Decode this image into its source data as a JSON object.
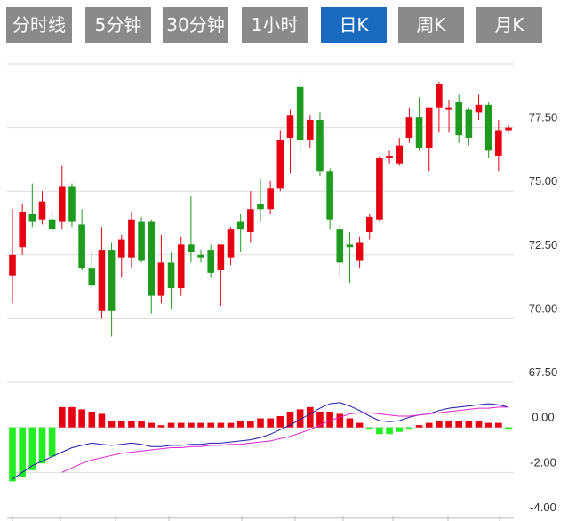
{
  "tabs": [
    "分时线",
    "5分钟",
    "30分钟",
    "1小时",
    "日K",
    "周K",
    "月K"
  ],
  "active_tab": 4,
  "chart_data": [
    {
      "type": "candlestick",
      "up_color": "#e60012",
      "down_color": "#1e9b1e",
      "grid": true,
      "ylim": [
        67.5,
        80
      ],
      "yticks": [
        {
          "value": 67.5,
          "label": "67.50"
        },
        {
          "value": 70,
          "label": "70.00"
        },
        {
          "value": 72.5,
          "label": "72.50"
        },
        {
          "value": 75,
          "label": "75.00"
        },
        {
          "value": 77.5,
          "label": "77.50"
        }
      ],
      "open": [
        71.7,
        72.8,
        74.1,
        73.9,
        73.9,
        73.8,
        75.2,
        73.7,
        72.0,
        70.3,
        72.7,
        72.4,
        72.4,
        73.8,
        73.8,
        70.9,
        72.2,
        71.2,
        72.9,
        72.5,
        72.7,
        71.9,
        72.4,
        73.8,
        73.4,
        74.5,
        74.3,
        75.1,
        77.1,
        79.1,
        77.0,
        77.8,
        75.8,
        73.5,
        72.9,
        72.3,
        73.4,
        73.9,
        76.3,
        76.1,
        77.1,
        77.9,
        76.7,
        78.3,
        78.2,
        78.5,
        78.2,
        78.1,
        78.4,
        76.4,
        77.4
      ],
      "high": [
        74.3,
        74.5,
        75.3,
        75.0,
        74.2,
        76.0,
        75.3,
        74.3,
        72.7,
        73.6,
        73.0,
        73.3,
        74.2,
        74.0,
        73.9,
        73.3,
        72.6,
        73.2,
        74.8,
        72.7,
        72.9,
        72.9,
        73.6,
        74.1,
        75.0,
        75.5,
        75.4,
        77.4,
        78.2,
        79.4,
        78.0,
        78.1,
        75.9,
        73.7,
        73.4,
        73.2,
        74.1,
        76.4,
        76.6,
        77.1,
        78.3,
        78.7,
        78.3,
        79.3,
        78.6,
        78.8,
        78.3,
        78.8,
        78.5,
        77.8,
        77.6
      ],
      "low": [
        70.6,
        72.5,
        73.6,
        73.7,
        73.4,
        73.5,
        73.6,
        71.9,
        71.2,
        70.0,
        69.3,
        71.6,
        72.0,
        72.2,
        70.2,
        70.6,
        70.4,
        70.9,
        72.2,
        72.2,
        71.6,
        70.5,
        72.1,
        72.6,
        73.0,
        73.8,
        74.1,
        75.0,
        75.7,
        76.5,
        76.7,
        75.6,
        73.5,
        71.6,
        71.4,
        72.0,
        73.1,
        73.8,
        76.1,
        76.0,
        76.9,
        76.6,
        75.8,
        77.3,
        77.3,
        76.9,
        76.8,
        77.8,
        76.3,
        75.8,
        77.3
      ],
      "close": [
        72.5,
        74.2,
        73.8,
        74.6,
        73.5,
        75.2,
        73.8,
        72.0,
        71.3,
        72.7,
        70.3,
        73.1,
        73.9,
        72.3,
        70.9,
        72.2,
        71.2,
        72.9,
        72.6,
        72.4,
        71.8,
        72.9,
        73.5,
        73.5,
        74.3,
        74.3,
        75.1,
        77.0,
        78.0,
        77.0,
        77.8,
        75.8,
        73.9,
        72.2,
        72.8,
        73.0,
        74.0,
        76.3,
        76.4,
        76.8,
        77.9,
        76.7,
        78.3,
        79.2,
        78.3,
        77.2,
        77.1,
        78.4,
        76.6,
        77.4,
        77.5
      ]
    },
    {
      "type": "macd",
      "grid": true,
      "ylim": [
        -4,
        2
      ],
      "yticks": [
        {
          "value": -4,
          "label": "-4.00"
        },
        {
          "value": -2,
          "label": "-2.00"
        },
        {
          "value": 0,
          "label": "0.00"
        }
      ],
      "series": [
        {
          "kind": "bar",
          "color": "#e60012",
          "down_color": "#22ee22",
          "values": [
            -2.4,
            -2.2,
            -1.9,
            -1.6,
            -1.3,
            0.9,
            0.9,
            0.8,
            0.7,
            0.6,
            0.3,
            0.3,
            0.3,
            0.3,
            0.2,
            0.1,
            0.2,
            0.2,
            0.2,
            0.2,
            0.2,
            0.2,
            0.2,
            0.3,
            0.3,
            0.4,
            0.4,
            0.5,
            0.7,
            0.8,
            0.9,
            0.7,
            0.7,
            0.6,
            0.4,
            0.2,
            -0.1,
            -0.3,
            -0.3,
            -0.2,
            -0.1,
            0.1,
            0.2,
            0.3,
            0.3,
            0.3,
            0.3,
            0.3,
            0.2,
            0.2,
            -0.1
          ]
        },
        {
          "kind": "line",
          "color": "#1a1aa8",
          "values": [
            -2.3,
            -2.0,
            -1.7,
            -1.5,
            -1.3,
            -1.1,
            -0.9,
            -0.8,
            -0.7,
            -0.75,
            -0.8,
            -0.75,
            -0.7,
            -0.75,
            -0.85,
            -0.85,
            -0.8,
            -0.8,
            -0.75,
            -0.75,
            -0.7,
            -0.7,
            -0.65,
            -0.6,
            -0.55,
            -0.45,
            -0.3,
            -0.1,
            0.1,
            0.35,
            0.6,
            0.85,
            1.05,
            1.1,
            0.95,
            0.75,
            0.5,
            0.3,
            0.25,
            0.3,
            0.45,
            0.55,
            0.6,
            0.75,
            0.85,
            0.9,
            0.95,
            1.0,
            1.05,
            1.0,
            0.9
          ]
        },
        {
          "kind": "line",
          "color": "#e020d0",
          "values": [
            null,
            null,
            null,
            null,
            null,
            -2.0,
            -1.8,
            -1.6,
            -1.45,
            -1.35,
            -1.25,
            -1.15,
            -1.1,
            -1.05,
            -1.0,
            -0.95,
            -0.9,
            -0.9,
            -0.85,
            -0.85,
            -0.8,
            -0.8,
            -0.75,
            -0.75,
            -0.7,
            -0.65,
            -0.6,
            -0.5,
            -0.4,
            -0.25,
            -0.1,
            0.1,
            0.3,
            0.45,
            0.6,
            0.65,
            0.65,
            0.6,
            0.55,
            0.5,
            0.5,
            0.55,
            0.6,
            0.65,
            0.7,
            0.75,
            0.8,
            0.85,
            0.85,
            0.9,
            0.9
          ]
        }
      ]
    }
  ]
}
